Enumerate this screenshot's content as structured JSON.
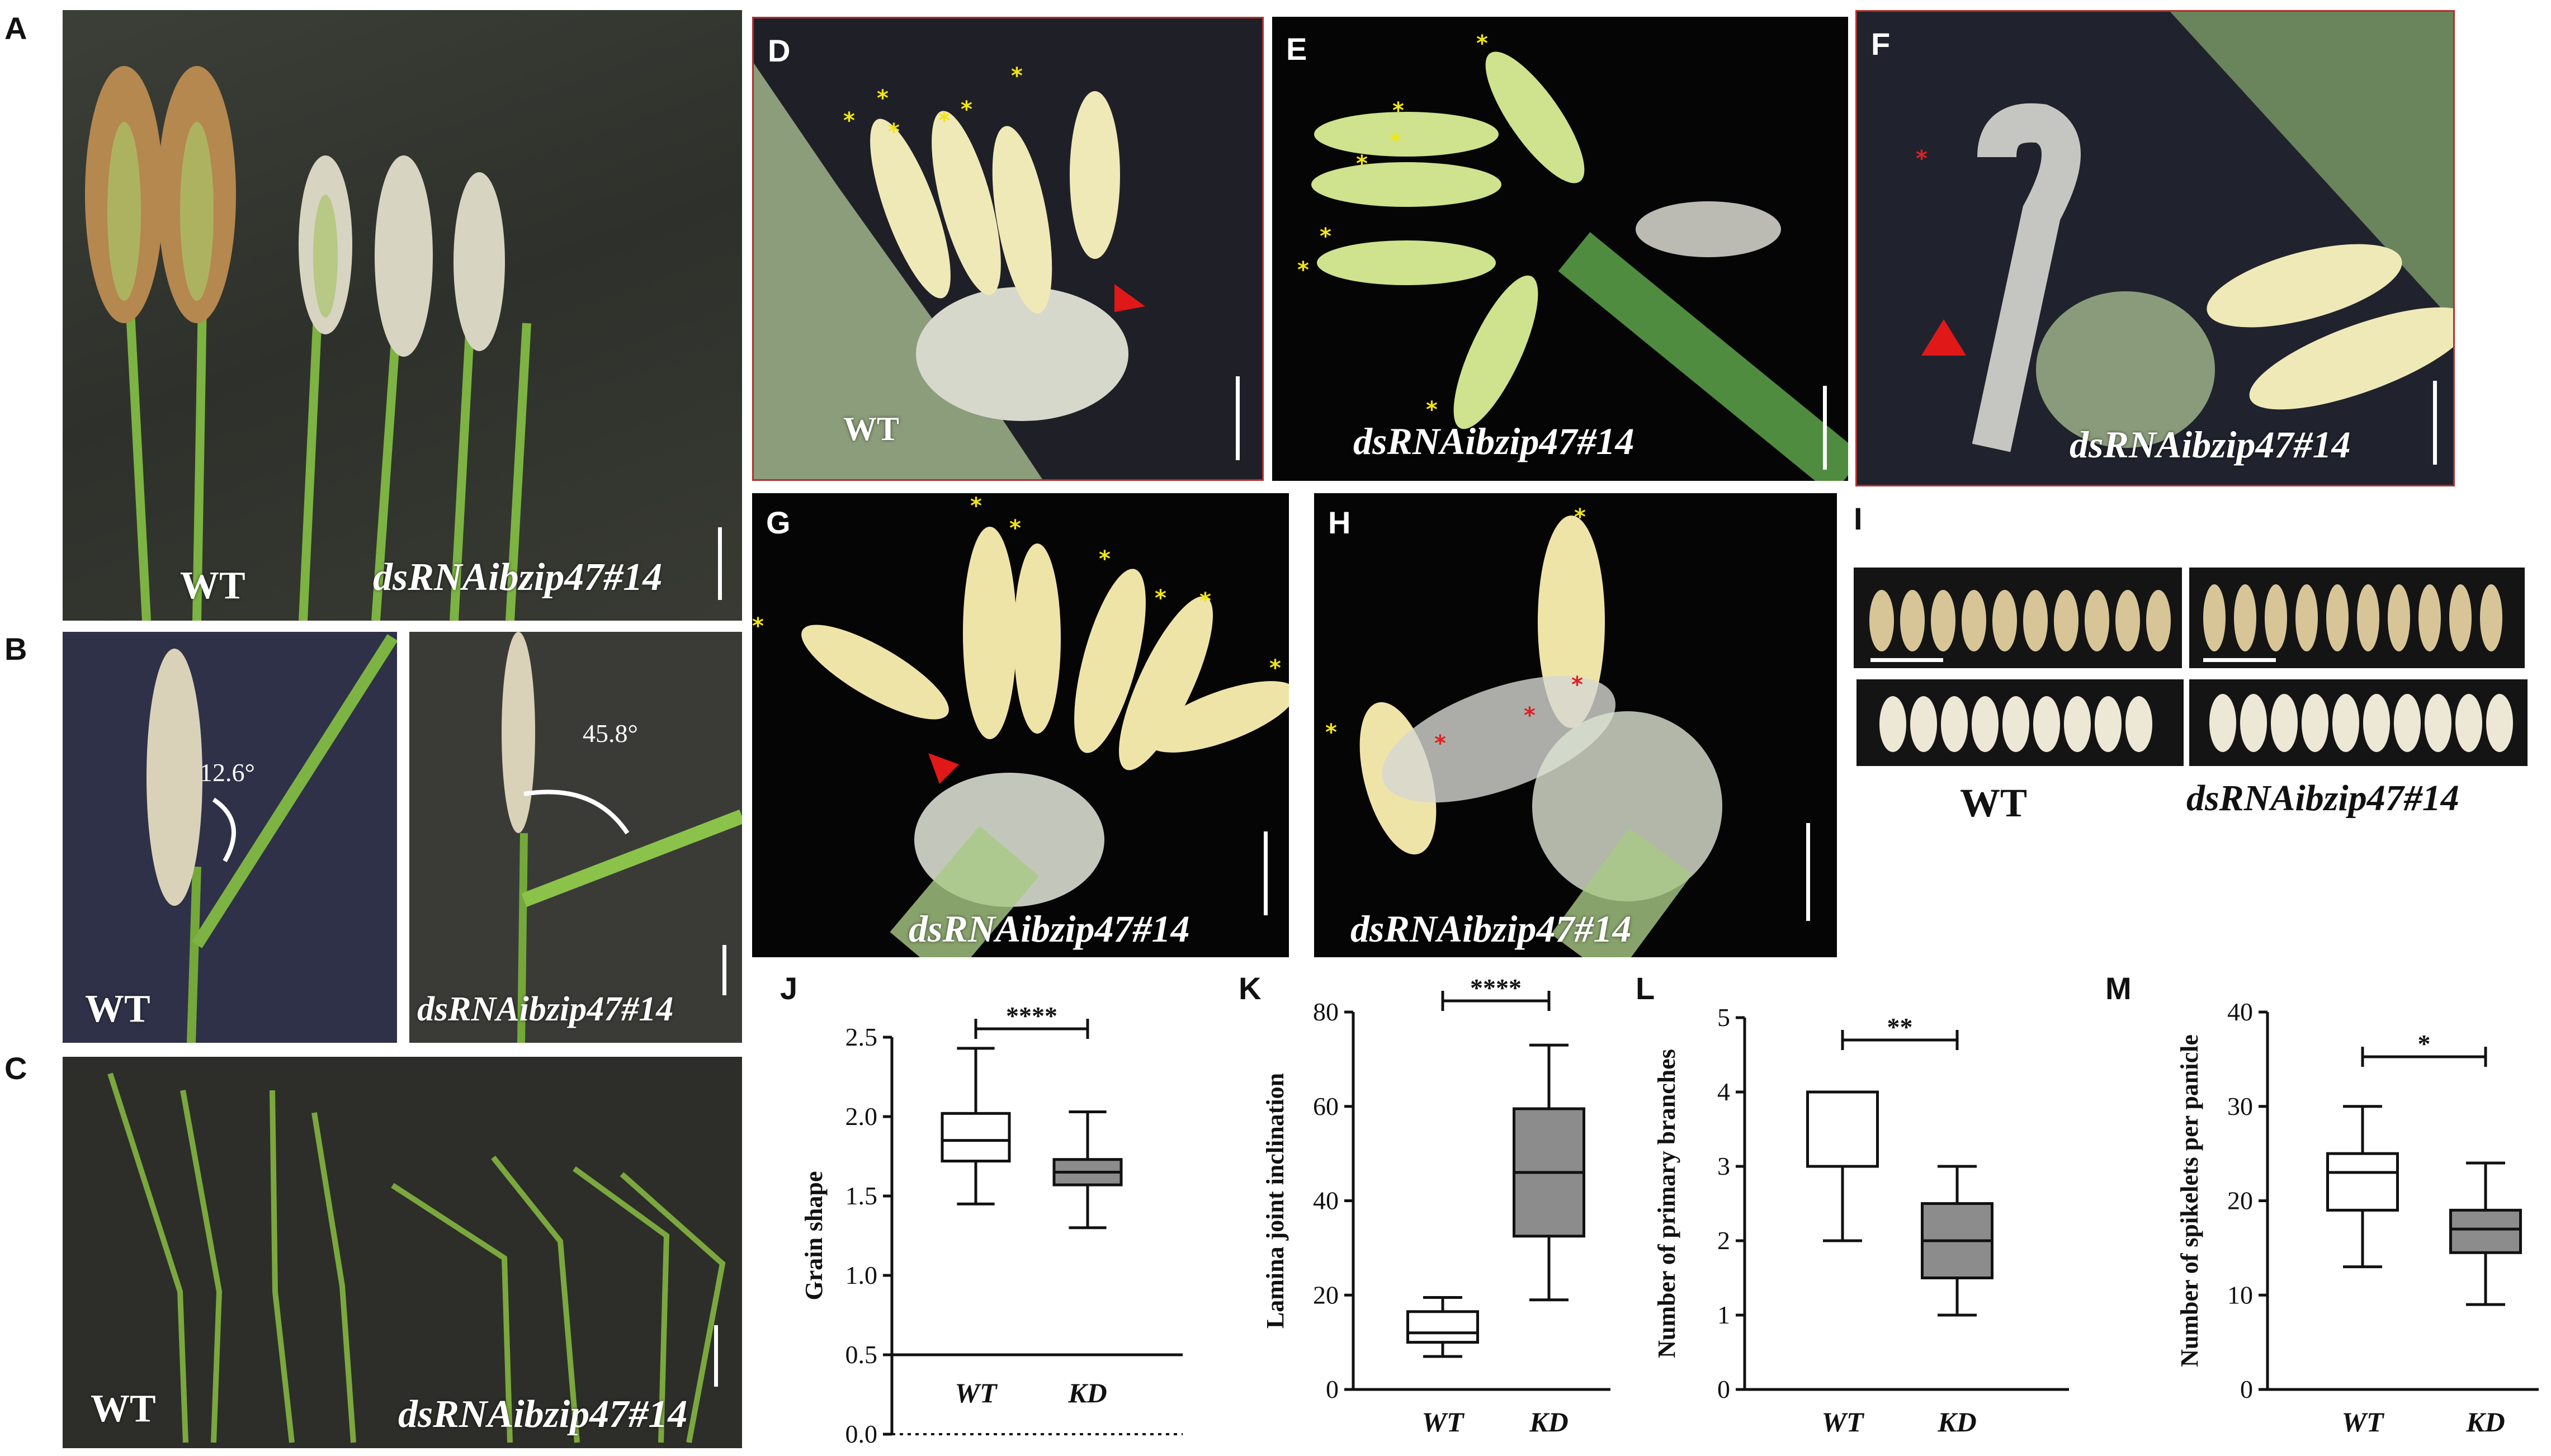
{
  "letters": {
    "A": "A",
    "B": "B",
    "C": "C",
    "D": "D",
    "E": "E",
    "F": "F",
    "G": "G",
    "H": "H",
    "I": "I",
    "J": "J",
    "K": "K",
    "L": "L",
    "M": "M"
  },
  "labels": {
    "wt": "WT",
    "mutant": "dsRNAibzip47#14"
  },
  "angles": {
    "wt": "12.6°",
    "mutant": "45.8°"
  },
  "star": "*",
  "colors": {
    "anther_star": "#f2e515",
    "stigma_star": "#e02020",
    "arrow": "#e01818",
    "kd_fill": "#8c8c8c",
    "wt_fill": "#ffffff"
  },
  "chart_data": [
    {
      "panel": "J",
      "type": "box",
      "ylabel": "Grain shape",
      "ylim": [
        0,
        2.5
      ],
      "ticks": [
        "0.0",
        "0.5",
        "1.0",
        "1.5",
        "2.0",
        "2.5"
      ],
      "categories": [
        "WT",
        "KD"
      ],
      "boxes": [
        {
          "min": 1.45,
          "q1": 1.72,
          "median": 1.85,
          "q3": 2.02,
          "max": 2.43
        },
        {
          "min": 1.3,
          "q1": 1.57,
          "median": 1.65,
          "q3": 1.73,
          "max": 2.03
        }
      ],
      "significance": "****"
    },
    {
      "panel": "K",
      "type": "box",
      "ylabel": "Lamina joint inclination",
      "ylim": [
        0,
        80
      ],
      "ticks": [
        "0",
        "20",
        "40",
        "60",
        "80"
      ],
      "categories": [
        "WT",
        "KD"
      ],
      "boxes": [
        {
          "min": 7,
          "q1": 10,
          "median": 12,
          "q3": 16.5,
          "max": 19.5
        },
        {
          "min": 19,
          "q1": 32.5,
          "median": 46,
          "q3": 59.5,
          "max": 73
        }
      ],
      "significance": "****"
    },
    {
      "panel": "L",
      "type": "box",
      "ylabel": "Number of primary branches",
      "ylim": [
        0,
        5
      ],
      "ticks": [
        "0",
        "1",
        "2",
        "3",
        "4",
        "5"
      ],
      "categories": [
        "WT",
        "KD"
      ],
      "boxes": [
        {
          "min": 2,
          "q1": 3,
          "median": 3,
          "q3": 4,
          "max": 4
        },
        {
          "min": 1,
          "q1": 1.5,
          "median": 2,
          "q3": 2.5,
          "max": 3
        }
      ],
      "significance": "**"
    },
    {
      "panel": "M",
      "type": "box",
      "ylabel": "Number of spikelets per panicle",
      "ylim": [
        0,
        40
      ],
      "ticks": [
        "0",
        "10",
        "20",
        "30",
        "40"
      ],
      "categories": [
        "WT",
        "KD"
      ],
      "boxes": [
        {
          "min": 13,
          "q1": 19,
          "median": 23,
          "q3": 25,
          "max": 30
        },
        {
          "min": 9,
          "q1": 14.5,
          "median": 17,
          "q3": 19,
          "max": 24
        }
      ],
      "significance": "*"
    }
  ]
}
